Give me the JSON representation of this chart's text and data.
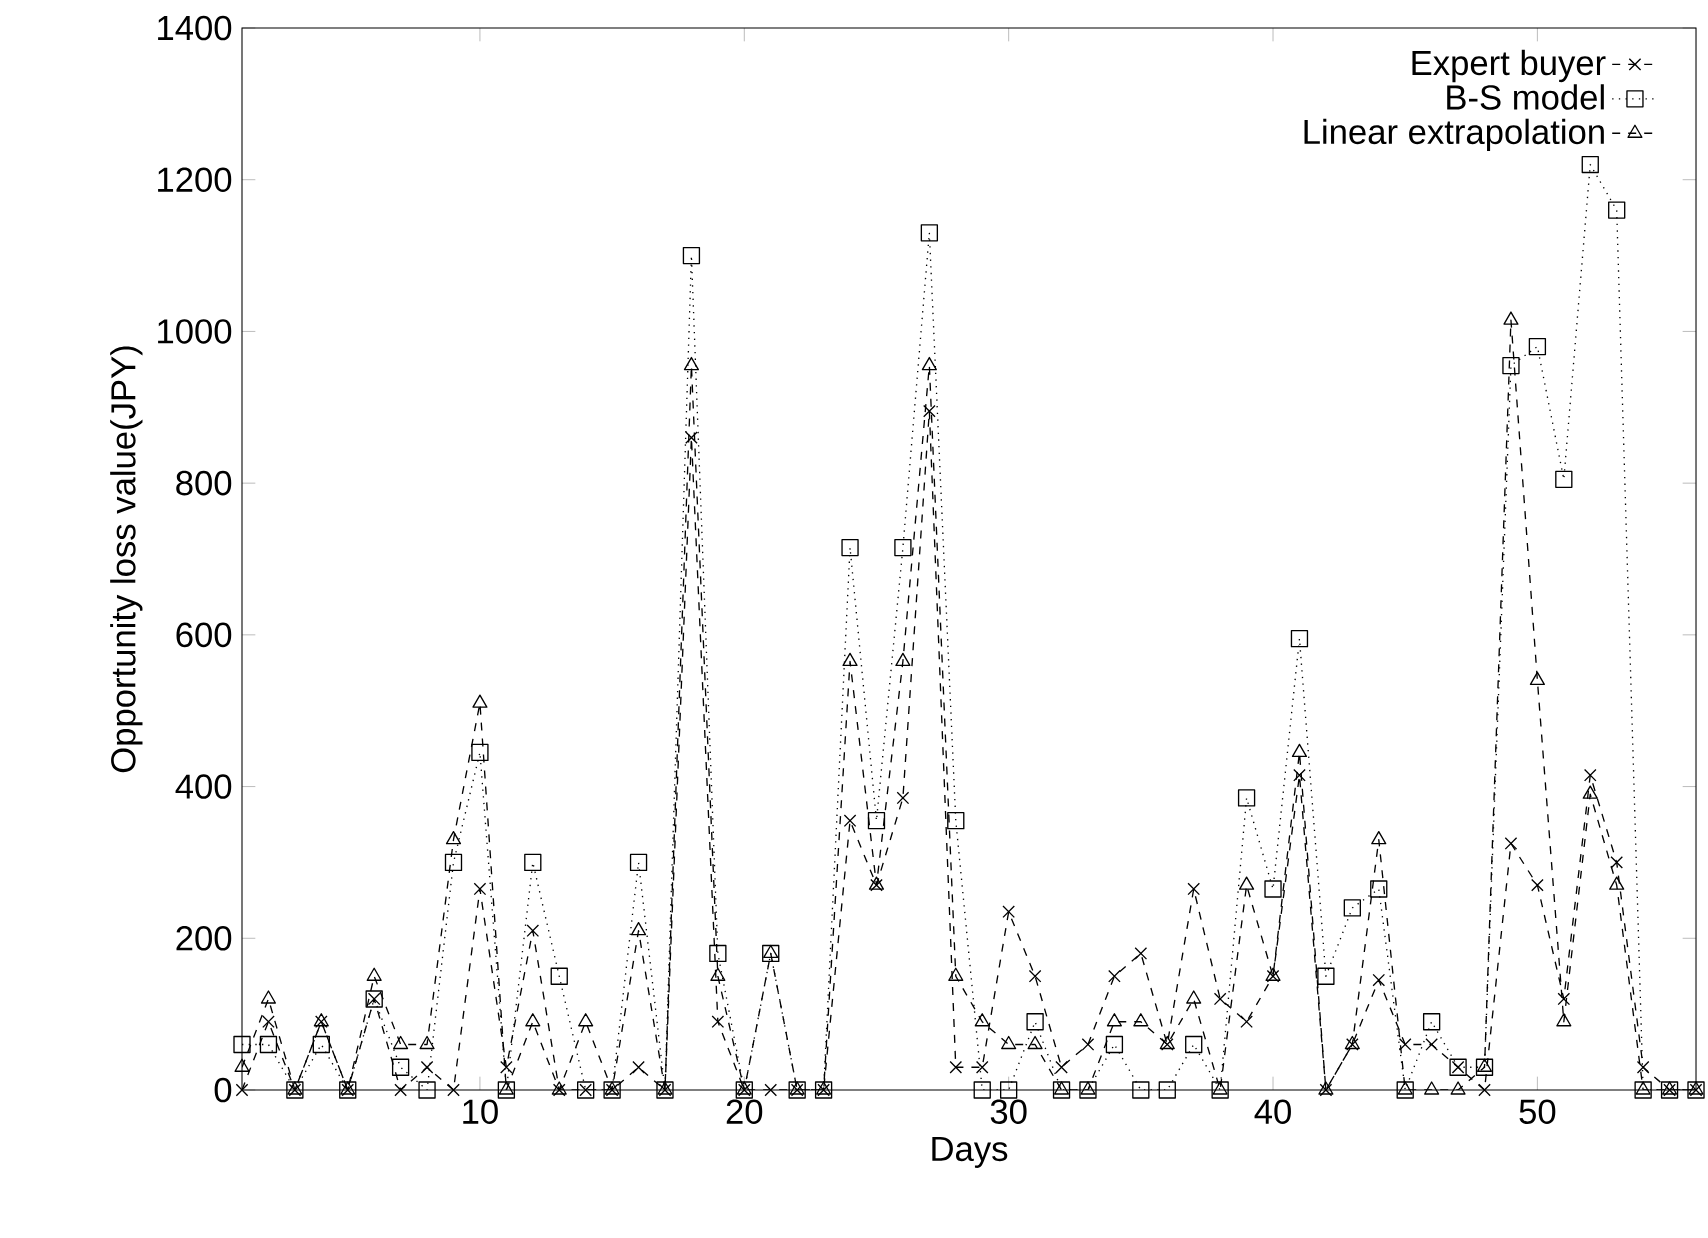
{
  "chart_data": {
    "type": "line",
    "xlabel": "Days",
    "ylabel": "Opportunity loss value(JPY)",
    "x": [
      1,
      2,
      3,
      4,
      5,
      6,
      7,
      8,
      9,
      10,
      11,
      12,
      13,
      14,
      15,
      16,
      17,
      18,
      19,
      20,
      21,
      22,
      23,
      24,
      25,
      26,
      27,
      28,
      29,
      30,
      31,
      32,
      33,
      34,
      35,
      36,
      37,
      38,
      39,
      40,
      41,
      42,
      43,
      44,
      45,
      46,
      47,
      48,
      49,
      50,
      51,
      52,
      53,
      54,
      55,
      56
    ],
    "series": [
      {
        "name": "Expert buyer",
        "color": "#000000",
        "marker": "cross",
        "line_style": "dashed",
        "values": [
          0,
          90,
          0,
          90,
          0,
          120,
          0,
          30,
          0,
          265,
          30,
          210,
          0,
          0,
          0,
          30,
          0,
          860,
          90,
          0,
          0,
          0,
          0,
          355,
          270,
          385,
          895,
          30,
          30,
          235,
          150,
          30,
          60,
          150,
          180,
          60,
          265,
          120,
          90,
          150,
          415,
          0,
          60,
          145,
          60,
          60,
          30,
          0,
          325,
          270,
          120,
          415,
          300,
          30,
          0,
          0
        ]
      },
      {
        "name": "B-S model",
        "color": "#000000",
        "marker": "square",
        "line_style": "dotted",
        "values": [
          60,
          60,
          0,
          60,
          0,
          120,
          30,
          0,
          300,
          445,
          0,
          300,
          150,
          0,
          0,
          300,
          0,
          1100,
          180,
          0,
          180,
          0,
          0,
          715,
          355,
          715,
          1130,
          355,
          0,
          0,
          90,
          0,
          0,
          60,
          0,
          0,
          60,
          0,
          385,
          265,
          595,
          150,
          240,
          265,
          0,
          90,
          30,
          30,
          955,
          980,
          805,
          1220,
          1160,
          0,
          0,
          0
        ]
      },
      {
        "name": "Linear extrapolation",
        "color": "#000000",
        "marker": "triangle",
        "line_style": "dashed",
        "values": [
          30,
          120,
          0,
          90,
          0,
          150,
          60,
          60,
          330,
          510,
          0,
          90,
          0,
          90,
          0,
          210,
          0,
          955,
          150,
          0,
          180,
          0,
          0,
          565,
          270,
          565,
          955,
          150,
          90,
          60,
          60,
          0,
          0,
          90,
          90,
          60,
          120,
          0,
          270,
          150,
          445,
          0,
          60,
          330,
          0,
          0,
          0,
          30,
          1015,
          540,
          90,
          390,
          270,
          0,
          0,
          0
        ]
      }
    ],
    "xlim": [
      1,
      56
    ],
    "ylim": [
      0,
      1400
    ],
    "xticks": [
      10,
      20,
      30,
      40,
      50
    ],
    "yticks": [
      0,
      200,
      400,
      600,
      800,
      1000,
      1200,
      1400
    ],
    "grid": false,
    "legend": "top right"
  }
}
